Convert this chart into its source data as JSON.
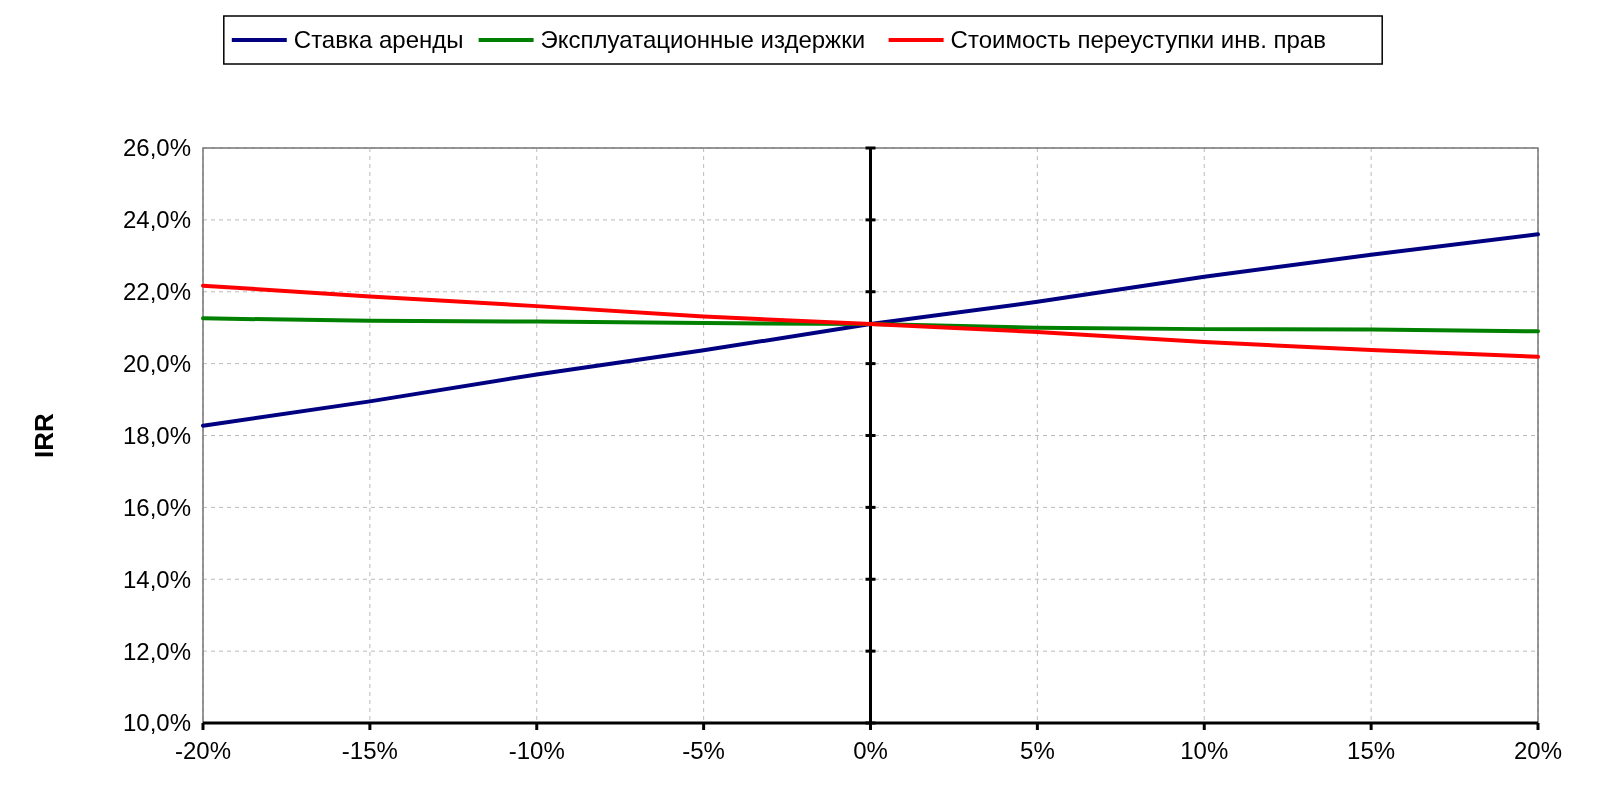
{
  "chart_data": {
    "type": "line",
    "ylabel": "IRR",
    "x": [
      -20,
      -15,
      -10,
      -5,
      0,
      5,
      10,
      15,
      20
    ],
    "series": [
      {
        "name": "Ставка аренды",
        "color": "#000080",
        "values": [
          18.27,
          18.95,
          19.7,
          20.37,
          21.1,
          21.72,
          22.42,
          23.03,
          23.6
        ]
      },
      {
        "name": "Эксплуатационные издержки",
        "color": "#008000",
        "values": [
          21.26,
          21.19,
          21.17,
          21.13,
          21.1,
          21.0,
          20.96,
          20.95,
          20.9
        ]
      },
      {
        "name": "Стоимость переуступки инв. прав",
        "color": "#ff0000",
        "values": [
          22.17,
          21.87,
          21.6,
          21.31,
          21.1,
          20.88,
          20.6,
          20.38,
          20.19
        ]
      }
    ],
    "xlim": [
      -20,
      20
    ],
    "ylim": [
      10,
      26
    ],
    "xticks": [
      {
        "value": -20,
        "label": "-20%"
      },
      {
        "value": -15,
        "label": "-15%"
      },
      {
        "value": -10,
        "label": "-10%"
      },
      {
        "value": -5,
        "label": "-5%"
      },
      {
        "value": 0,
        "label": "0%"
      },
      {
        "value": 5,
        "label": "5%"
      },
      {
        "value": 10,
        "label": "10%"
      },
      {
        "value": 15,
        "label": "15%"
      },
      {
        "value": 20,
        "label": "20%"
      }
    ],
    "yticks": [
      {
        "value": 10,
        "label": "10,0%"
      },
      {
        "value": 12,
        "label": "12,0%"
      },
      {
        "value": 14,
        "label": "14,0%"
      },
      {
        "value": 16,
        "label": "16,0%"
      },
      {
        "value": 18,
        "label": "18,0%"
      },
      {
        "value": 20,
        "label": "20,0%"
      },
      {
        "value": 22,
        "label": "22,0%"
      },
      {
        "value": 24,
        "label": "24,0%"
      },
      {
        "value": 26,
        "label": "26,0%"
      }
    ],
    "grid": true,
    "legend": "top",
    "marker": "none",
    "line_style": "solid"
  }
}
